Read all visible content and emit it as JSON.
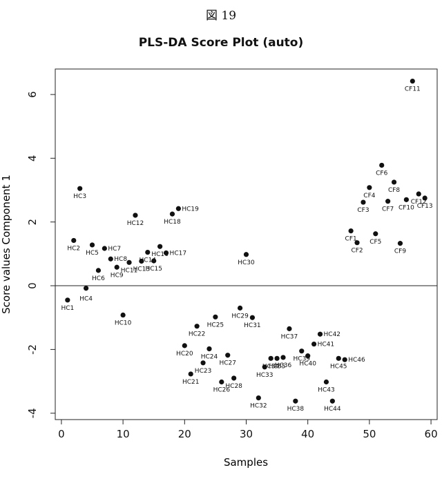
{
  "figure_label": "図 19",
  "chart_data": {
    "type": "scatter",
    "title": "PLS-DA Score Plot (auto)",
    "xlabel": "Samples",
    "ylabel": "Score values Component 1",
    "xlim": [
      -1,
      61
    ],
    "ylim": [
      -4.2,
      6.8
    ],
    "xticks": [
      0,
      10,
      20,
      30,
      40,
      50,
      60
    ],
    "yticks": [
      -4,
      -2,
      0,
      2,
      4,
      6
    ],
    "reference_line_y": 0,
    "grid": false,
    "legend": "none",
    "colors": {
      "point": "#111111",
      "axis": "#222222"
    },
    "points": [
      {
        "label": "HC1",
        "x": 1,
        "y": -0.45
      },
      {
        "label": "HC2",
        "x": 2,
        "y": 1.42
      },
      {
        "label": "HC3",
        "x": 3,
        "y": 3.05
      },
      {
        "label": "HC4",
        "x": 4,
        "y": -0.08
      },
      {
        "label": "HC5",
        "x": 5,
        "y": 1.28
      },
      {
        "label": "HC6",
        "x": 6,
        "y": 0.48
      },
      {
        "label": "HC7",
        "x": 7,
        "y": 1.17
      },
      {
        "label": "HC8",
        "x": 8,
        "y": 0.84
      },
      {
        "label": "HC9",
        "x": 9,
        "y": 0.58
      },
      {
        "label": "HC10",
        "x": 10,
        "y": -0.92
      },
      {
        "label": "HC11",
        "x": 11,
        "y": 0.73
      },
      {
        "label": "HC12",
        "x": 12,
        "y": 2.21
      },
      {
        "label": "HC13",
        "x": 13,
        "y": 0.77
      },
      {
        "label": "HC14",
        "x": 14,
        "y": 1.05
      },
      {
        "label": "HC15",
        "x": 15,
        "y": 0.78
      },
      {
        "label": "HC16",
        "x": 16,
        "y": 1.23
      },
      {
        "label": "HC17",
        "x": 17,
        "y": 1.03
      },
      {
        "label": "HC18",
        "x": 18,
        "y": 2.25
      },
      {
        "label": "HC19",
        "x": 19,
        "y": 2.42
      },
      {
        "label": "HC20",
        "x": 20,
        "y": -1.88
      },
      {
        "label": "HC21",
        "x": 21,
        "y": -2.77
      },
      {
        "label": "HC22",
        "x": 22,
        "y": -1.27
      },
      {
        "label": "HC23",
        "x": 23,
        "y": -2.42
      },
      {
        "label": "HC24",
        "x": 24,
        "y": -1.98
      },
      {
        "label": "HC25",
        "x": 25,
        "y": -0.98
      },
      {
        "label": "HC26",
        "x": 26,
        "y": -3.02
      },
      {
        "label": "HC27",
        "x": 27,
        "y": -2.18
      },
      {
        "label": "HC28",
        "x": 28,
        "y": -2.9
      },
      {
        "label": "HC29",
        "x": 29,
        "y": -0.7
      },
      {
        "label": "HC30",
        "x": 30,
        "y": 0.98
      },
      {
        "label": "HC31",
        "x": 31,
        "y": -1.0
      },
      {
        "label": "HC32",
        "x": 32,
        "y": -3.52
      },
      {
        "label": "HC33",
        "x": 33,
        "y": -2.55
      },
      {
        "label": "HC34",
        "x": 34,
        "y": -2.28
      },
      {
        "label": "HC35",
        "x": 35,
        "y": -2.28
      },
      {
        "label": "HC36",
        "x": 36,
        "y": -2.25
      },
      {
        "label": "HC37",
        "x": 37,
        "y": -1.35
      },
      {
        "label": "HC38",
        "x": 38,
        "y": -3.62
      },
      {
        "label": "HC39",
        "x": 39,
        "y": -2.05
      },
      {
        "label": "HC40",
        "x": 40,
        "y": -2.2
      },
      {
        "label": "HC41",
        "x": 41,
        "y": -1.83
      },
      {
        "label": "HC42",
        "x": 42,
        "y": -1.52
      },
      {
        "label": "HC43",
        "x": 43,
        "y": -3.02
      },
      {
        "label": "HC44",
        "x": 44,
        "y": -3.62
      },
      {
        "label": "HC45",
        "x": 45,
        "y": -2.28
      },
      {
        "label": "HC46",
        "x": 46,
        "y": -2.32
      },
      {
        "label": "CF1",
        "x": 47,
        "y": 1.72
      },
      {
        "label": "CF2",
        "x": 48,
        "y": 1.35
      },
      {
        "label": "CF3",
        "x": 49,
        "y": 2.62
      },
      {
        "label": "CF4",
        "x": 50,
        "y": 3.08
      },
      {
        "label": "CF5",
        "x": 51,
        "y": 1.63
      },
      {
        "label": "CF6",
        "x": 52,
        "y": 3.78
      },
      {
        "label": "CF7",
        "x": 53,
        "y": 2.65
      },
      {
        "label": "CF8",
        "x": 54,
        "y": 3.25
      },
      {
        "label": "CF9",
        "x": 55,
        "y": 1.33
      },
      {
        "label": "CF10",
        "x": 56,
        "y": 2.7
      },
      {
        "label": "CF11",
        "x": 57,
        "y": 6.42
      },
      {
        "label": "CF12",
        "x": 58,
        "y": 2.88
      },
      {
        "label": "CF13",
        "x": 59,
        "y": 2.75
      }
    ]
  }
}
